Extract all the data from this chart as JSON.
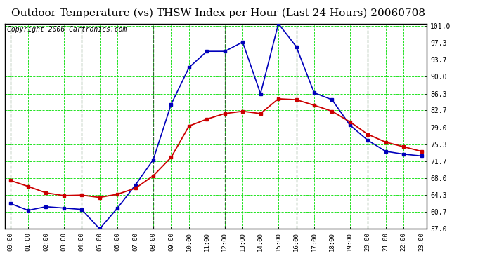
{
  "title": "Outdoor Temperature (vs) THSW Index per Hour (Last 24 Hours) 20060708",
  "copyright": "Copyright 2006 Cartronics.com",
  "hours": [
    "00:00",
    "01:00",
    "02:00",
    "03:00",
    "04:00",
    "05:00",
    "06:00",
    "07:00",
    "08:00",
    "09:00",
    "10:00",
    "11:00",
    "12:00",
    "13:00",
    "14:00",
    "15:00",
    "16:00",
    "17:00",
    "18:00",
    "19:00",
    "20:00",
    "21:00",
    "22:00",
    "23:00"
  ],
  "temp_red": [
    67.5,
    66.2,
    64.8,
    64.2,
    64.3,
    63.8,
    64.5,
    65.8,
    68.5,
    72.5,
    79.3,
    80.8,
    82.0,
    82.5,
    82.0,
    85.2,
    85.0,
    83.8,
    82.5,
    80.2,
    77.5,
    75.8,
    74.8,
    73.8
  ],
  "thsw_blue": [
    62.5,
    61.0,
    61.8,
    61.5,
    61.2,
    57.0,
    61.5,
    66.5,
    72.0,
    84.0,
    92.0,
    95.5,
    95.5,
    97.5,
    86.3,
    101.5,
    96.5,
    86.5,
    85.0,
    79.5,
    76.2,
    73.8,
    73.2,
    72.8
  ],
  "ylim_min": 57.0,
  "ylim_max": 101.0,
  "yticks": [
    57.0,
    60.7,
    64.3,
    68.0,
    71.7,
    75.3,
    79.0,
    82.7,
    86.3,
    90.0,
    93.7,
    97.3,
    101.0
  ],
  "bg_color": "#ffffff",
  "plot_bg": "#ffffff",
  "grid_color": "#00dd00",
  "grid_dash_color": "#336633",
  "red_color": "#cc0000",
  "blue_color": "#0000bb",
  "title_fontsize": 11,
  "copyright_fontsize": 7
}
